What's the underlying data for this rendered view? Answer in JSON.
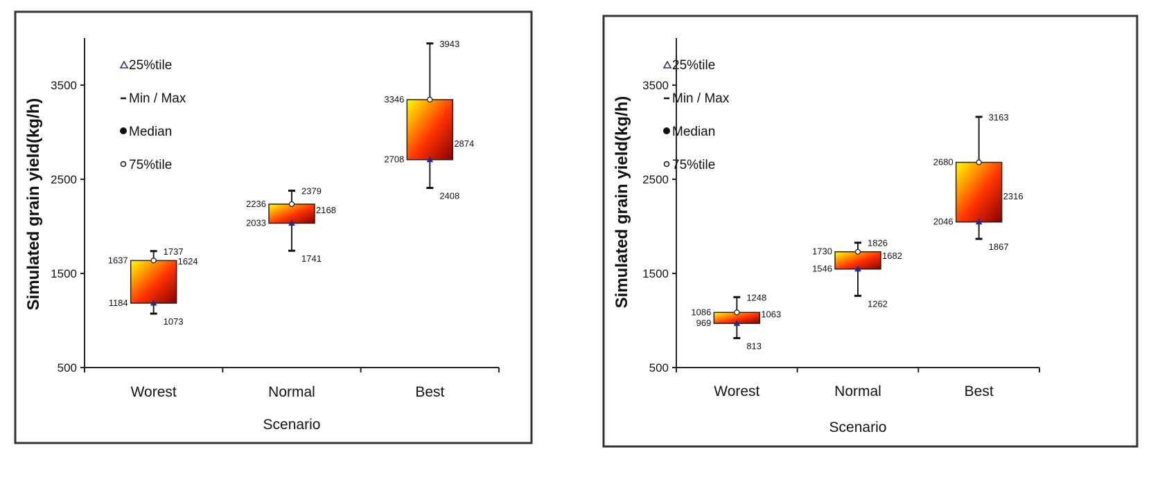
{
  "charts": [
    {
      "chart_data": {
        "type": "box",
        "xlabel": "Scenario",
        "ylabel": "Simulated grain yield(kg/h)",
        "ylim": [
          500,
          4000
        ],
        "yticks": [
          500,
          1500,
          2500,
          3500
        ],
        "categories": [
          "Worest",
          "Normal",
          "Best"
        ],
        "boxes": [
          {
            "category": "Worest",
            "min": 1073,
            "q1": 1184,
            "median": 1624,
            "q3": 1637,
            "max": 1737,
            "labels": {
              "min": "1073",
              "q1": "1184",
              "median": "1624",
              "q3": "1637",
              "max": "1737"
            }
          },
          {
            "category": "Normal",
            "min": 1741,
            "q1": 2033,
            "median": 2168,
            "q3": 2236,
            "max": 2379,
            "labels": {
              "min": "1741",
              "q1": "2033",
              "median": "2168",
              "q3": "2236",
              "max": "2379"
            }
          },
          {
            "category": "Best",
            "min": 2408,
            "q1": 2708,
            "median": 2874,
            "q3": 3346,
            "max": 3943,
            "labels": {
              "min": "2408",
              "q1": "2708",
              "median": "2874",
              "q3": "3346",
              "max": "3943"
            }
          }
        ],
        "legend": [
          {
            "key": "q1",
            "label": "25%tile",
            "marker": "triangle",
            "color": "#2a2a8a"
          },
          {
            "key": "minmax",
            "label": "Min / Max",
            "marker": "dash",
            "color": "#111111"
          },
          {
            "key": "median",
            "label": "Median",
            "marker": "dot",
            "color": "#111111"
          },
          {
            "key": "q3",
            "label": "75%tile",
            "marker": "circle",
            "color": "#111111"
          }
        ],
        "legend_position": "top-left"
      }
    },
    {
      "chart_data": {
        "type": "box",
        "xlabel": "Scenario",
        "ylabel": "Simulated grain yield(kg/h)",
        "ylim": [
          500,
          4000
        ],
        "yticks": [
          500,
          1500,
          2500,
          3500
        ],
        "categories": [
          "Worest",
          "Normal",
          "Best"
        ],
        "boxes": [
          {
            "category": "Worest",
            "min": 813,
            "q1": 969,
            "median": 1063,
            "q3": 1086,
            "max": 1248,
            "labels": {
              "min": "813",
              "q1": "969",
              "median": "1063",
              "q3": "1086",
              "max": "1248"
            }
          },
          {
            "category": "Normal",
            "min": 1262,
            "q1": 1546,
            "median": 1682,
            "q3": 1730,
            "max": 1826,
            "labels": {
              "min": "1262",
              "q1": "1546",
              "median": "1682",
              "q3": "1730",
              "max": "1826"
            }
          },
          {
            "category": "Best",
            "min": 1867,
            "q1": 2046,
            "median": 2316,
            "q3": 2680,
            "max": 3163,
            "labels": {
              "min": "1867",
              "q1": "2046",
              "median": "2316",
              "q3": "2680",
              "max": "3163"
            }
          }
        ],
        "legend": [
          {
            "key": "q1",
            "label": "25%tile",
            "marker": "triangle",
            "color": "#2a2a8a"
          },
          {
            "key": "minmax",
            "label": "Min / Max",
            "marker": "dash",
            "color": "#111111"
          },
          {
            "key": "median",
            "label": "Median",
            "marker": "dot",
            "color": "#111111"
          },
          {
            "key": "q3",
            "label": "75%tile",
            "marker": "circle",
            "color": "#111111"
          }
        ],
        "legend_position": "top-left"
      }
    }
  ],
  "colors": {
    "box_gradient_start": "#ffff00",
    "box_gradient_mid": "#ff3300",
    "box_gradient_end": "#880000",
    "frame": "#333333",
    "q1_marker": "#2a2a8a"
  }
}
